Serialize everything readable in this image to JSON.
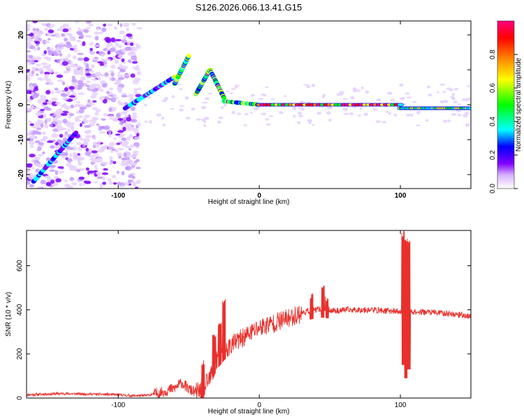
{
  "figure": {
    "title": "S126.2026.066.13.41.G15"
  },
  "chart_data": [
    {
      "type": "heatmap",
      "xlabel": "Height of straight line (km)",
      "ylabel": "Frequency (Hz)",
      "xlim": [
        -165,
        150
      ],
      "ylim": [
        -24,
        24
      ],
      "xticks": [
        -100,
        0,
        100
      ],
      "yticks": [
        -20,
        -10,
        0,
        10,
        20
      ],
      "colorbar": {
        "label": "Normalized spectral amplitude",
        "range": [
          0,
          1
        ],
        "ticks": [
          0.0,
          0.2,
          0.4,
          0.6,
          0.8
        ],
        "colors": [
          "#ffffff",
          "#d9b3ff",
          "#7f00ff",
          "#0000ff",
          "#00ffff",
          "#00ff00",
          "#ffff00",
          "#ff8000",
          "#ff0000",
          "#ff007f"
        ]
      },
      "noise_region_x": [
        -165,
        -85
      ],
      "ridge_segments": [
        {
          "x": [
            -160,
            -130
          ],
          "y": [
            -22,
            -8
          ]
        },
        {
          "x": [
            -95,
            -60
          ],
          "y": [
            -1,
            8
          ]
        },
        {
          "x": [
            -60,
            -50
          ],
          "y": [
            6,
            14
          ]
        },
        {
          "x": [
            -45,
            -35
          ],
          "y": [
            3,
            10
          ]
        },
        {
          "x": [
            -35,
            -25
          ],
          "y": [
            10,
            2
          ]
        },
        {
          "x": [
            -25,
            0
          ],
          "y": [
            1,
            0
          ]
        },
        {
          "x": [
            0,
            100
          ],
          "y": [
            0,
            0
          ]
        },
        {
          "x": [
            100,
            150
          ],
          "y": [
            -1,
            -1
          ]
        }
      ]
    },
    {
      "type": "line",
      "xlabel": "Height of straight line (km)",
      "ylabel": "SNR (10 * v/v)",
      "xlim": [
        -165,
        150
      ],
      "ylim": [
        0,
        760
      ],
      "xticks": [
        -100,
        0,
        100
      ],
      "yticks": [
        0,
        200,
        400,
        600
      ],
      "line_color": "#e8302c",
      "series": [
        {
          "x": [
            -165,
            -140,
            -120,
            -100,
            -90,
            -80,
            -70,
            -60,
            -55,
            -50,
            -45,
            -40,
            -35,
            -30,
            -25,
            -20,
            -15,
            -10,
            -5,
            0,
            10,
            20,
            30,
            35,
            40,
            45,
            50,
            55,
            60,
            70,
            80,
            90,
            95,
            100,
            102,
            104,
            106,
            108,
            110,
            120,
            130,
            140,
            150
          ],
          "values": [
            15,
            20,
            18,
            15,
            10,
            12,
            25,
            45,
            70,
            40,
            25,
            35,
            90,
            170,
            210,
            240,
            260,
            280,
            300,
            320,
            340,
            360,
            385,
            395,
            400,
            405,
            400,
            395,
            400,
            400,
            400,
            395,
            395,
            390,
            390,
            390,
            395,
            395,
            390,
            390,
            385,
            380,
            370
          ]
        }
      ],
      "spikes": [
        {
          "x": -40,
          "max": 180
        },
        {
          "x": -32,
          "max": 300
        },
        {
          "x": -28,
          "max": 360
        },
        {
          "x": -25,
          "max": 460
        },
        {
          "x": 37,
          "max": 480
        },
        {
          "x": 45,
          "max": 520
        },
        {
          "x": 48,
          "max": 470
        },
        {
          "x": 102,
          "max": 760,
          "min": 150
        },
        {
          "x": 104,
          "max": 740,
          "min": 90
        },
        {
          "x": 106,
          "max": 730,
          "min": 130
        }
      ]
    }
  ]
}
